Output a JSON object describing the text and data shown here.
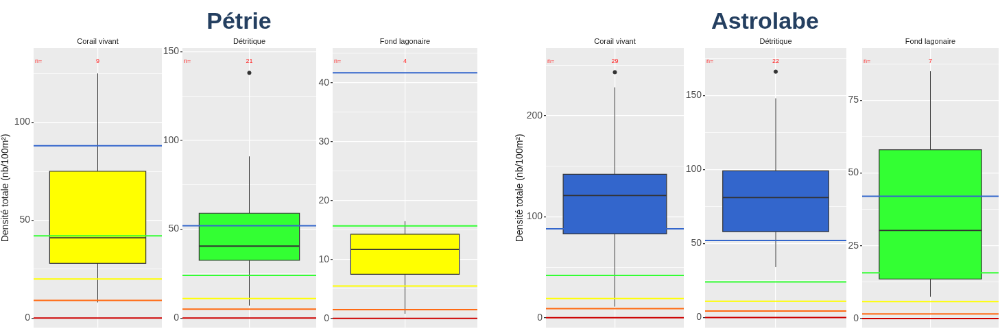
{
  "chart_data": [
    {
      "type": "box",
      "subtitle": "Corail vivant",
      "ylabel": "Densité totale (nb/100m²)",
      "categories": [
        null
      ],
      "series": [
        {
          "color": "#ffff00",
          "boxes": [
            {
              "low": 8,
              "q1": 28,
              "median": 41,
              "q3": 75,
              "high": 125
            }
          ]
        }
      ],
      "ylim": [
        -5,
        138
      ],
      "yticks": [
        0,
        {
          "value": 25,
          "label": null
        },
        50,
        {
          "value": 75,
          "label": null
        },
        100,
        {
          "value": 125,
          "label": null
        }
      ],
      "grid": true,
      "tick_labels": "y",
      "ref_lines": [
        {
          "axis": "y",
          "value": 0,
          "color": "#cc0000"
        },
        {
          "axis": "y",
          "value": 9,
          "color": "#ff6a13"
        },
        {
          "axis": "y",
          "value": 20,
          "color": "#ffff00"
        },
        {
          "axis": "y",
          "value": 42,
          "color": "#33ff33"
        },
        {
          "axis": "y",
          "value": 88,
          "color": "#3366cc"
        }
      ],
      "annotations": [
        "n=",
        "9"
      ]
    },
    {
      "type": "box",
      "title": "Pétrie",
      "subtitle": "Détritique",
      "categories": [
        null
      ],
      "series": [
        {
          "color": "#33ff33",
          "boxes": [
            {
              "low": 7,
              "q1": 32.5,
              "median": 40.5,
              "q3": 59,
              "high": 91,
              "outliers": [
                138
              ]
            }
          ]
        }
      ],
      "ylim": [
        -5.5,
        152
      ],
      "yticks": [
        0,
        {
          "value": 25,
          "label": null
        },
        50,
        {
          "value": 75,
          "label": null
        },
        100,
        {
          "value": 125,
          "label": null
        },
        150
      ],
      "grid": true,
      "tick_labels": "y",
      "ref_lines": [
        {
          "axis": "y",
          "value": 0,
          "color": "#cc0000"
        },
        {
          "axis": "y",
          "value": 5,
          "color": "#ff6a13"
        },
        {
          "axis": "y",
          "value": 11,
          "color": "#ffff00"
        },
        {
          "axis": "y",
          "value": 24,
          "color": "#33ff33"
        },
        {
          "axis": "y",
          "value": 52,
          "color": "#3366cc"
        }
      ],
      "annotations": [
        "n=",
        "21"
      ]
    },
    {
      "type": "box",
      "subtitle": "Fond lagonaire",
      "categories": [
        null
      ],
      "series": [
        {
          "color": "#ffff00",
          "boxes": [
            {
              "low": 0.8,
              "q1": 7.5,
              "median": 11.7,
              "q3": 14.3,
              "high": 16.5
            }
          ]
        }
      ],
      "ylim": [
        -1.6,
        45.9
      ],
      "yticks": [
        0,
        {
          "value": 5,
          "label": null
        },
        10,
        {
          "value": 15,
          "label": null
        },
        20,
        {
          "value": 25,
          "label": null
        },
        30,
        {
          "value": 35,
          "label": null
        },
        40,
        {
          "value": 45,
          "label": null
        }
      ],
      "grid": true,
      "tick_labels": "y",
      "ref_lines": [
        {
          "axis": "y",
          "value": 0,
          "color": "#cc0000"
        },
        {
          "axis": "y",
          "value": 1.5,
          "color": "#ff6a13"
        },
        {
          "axis": "y",
          "value": 5.5,
          "color": "#ffff00"
        },
        {
          "axis": "y",
          "value": 15.7,
          "color": "#33ff33"
        },
        {
          "axis": "y",
          "value": 41.7,
          "color": "#3366cc"
        }
      ],
      "annotations": [
        "n=",
        "4"
      ]
    },
    {
      "type": "box",
      "subtitle": "Corail vivant",
      "ylabel": "Densité totale (nb/100m²)",
      "categories": [
        null
      ],
      "series": [
        {
          "color": "#3366cc",
          "boxes": [
            {
              "low": 11,
              "q1": 83,
              "median": 121,
              "q3": 142,
              "high": 228,
              "outliers": [
                243
              ]
            }
          ]
        }
      ],
      "ylim": [
        -10,
        267
      ],
      "yticks": [
        0,
        {
          "value": 50,
          "label": null
        },
        100,
        {
          "value": 150,
          "label": null
        },
        200,
        {
          "value": 250,
          "label": null
        }
      ],
      "grid": true,
      "tick_labels": "y",
      "ref_lines": [
        {
          "axis": "y",
          "value": 0,
          "color": "#cc0000"
        },
        {
          "axis": "y",
          "value": 9,
          "color": "#ff6a13"
        },
        {
          "axis": "y",
          "value": 19,
          "color": "#ffff00"
        },
        {
          "axis": "y",
          "value": 42,
          "color": "#33ff33"
        },
        {
          "axis": "y",
          "value": 88,
          "color": "#3366cc"
        }
      ],
      "annotations": [
        "n=",
        "29"
      ]
    },
    {
      "type": "box",
      "title": "Astrolabe",
      "subtitle": "Détritique",
      "categories": [
        null
      ],
      "series": [
        {
          "color": "#3366cc",
          "boxes": [
            {
              "low": 34,
              "q1": 58,
              "median": 81,
              "q3": 99,
              "high": 148,
              "outliers": [
                166
              ]
            }
          ]
        }
      ],
      "ylim": [
        -7,
        182
      ],
      "yticks": [
        0,
        {
          "value": 25,
          "label": null
        },
        50,
        {
          "value": 75,
          "label": null
        },
        100,
        {
          "value": 125,
          "label": null
        },
        150,
        {
          "value": 175,
          "label": null
        }
      ],
      "grid": true,
      "tick_labels": "y",
      "ref_lines": [
        {
          "axis": "y",
          "value": 0,
          "color": "#cc0000"
        },
        {
          "axis": "y",
          "value": 4.4,
          "color": "#ff6a13"
        },
        {
          "axis": "y",
          "value": 11,
          "color": "#ffff00"
        },
        {
          "axis": "y",
          "value": 24,
          "color": "#33ff33"
        },
        {
          "axis": "y",
          "value": 52,
          "color": "#3366cc"
        }
      ],
      "annotations": [
        "n=",
        "22"
      ]
    },
    {
      "type": "box",
      "subtitle": "Fond lagonaire",
      "categories": [
        null
      ],
      "series": [
        {
          "color": "#33ff33",
          "boxes": [
            {
              "low": 7.5,
              "q1": 13.6,
              "median": 30.3,
              "q3": 58,
              "high": 85
            }
          ]
        }
      ],
      "ylim": [
        -3.2,
        93
      ],
      "yticks": [
        0,
        {
          "value": 12.5,
          "label": null
        },
        25,
        {
          "value": 37.5,
          "label": null
        },
        50,
        {
          "value": 62.5,
          "label": null
        },
        75,
        {
          "value": 87.5,
          "label": null
        }
      ],
      "grid": true,
      "tick_labels": "y",
      "ref_lines": [
        {
          "axis": "y",
          "value": 0,
          "color": "#cc0000"
        },
        {
          "axis": "y",
          "value": 1.6,
          "color": "#ff6a13"
        },
        {
          "axis": "y",
          "value": 5.8,
          "color": "#ffff00"
        },
        {
          "axis": "y",
          "value": 15.7,
          "color": "#33ff33"
        },
        {
          "axis": "y",
          "value": 42,
          "color": "#3366cc"
        }
      ],
      "annotations": [
        "n=",
        "7"
      ]
    }
  ]
}
